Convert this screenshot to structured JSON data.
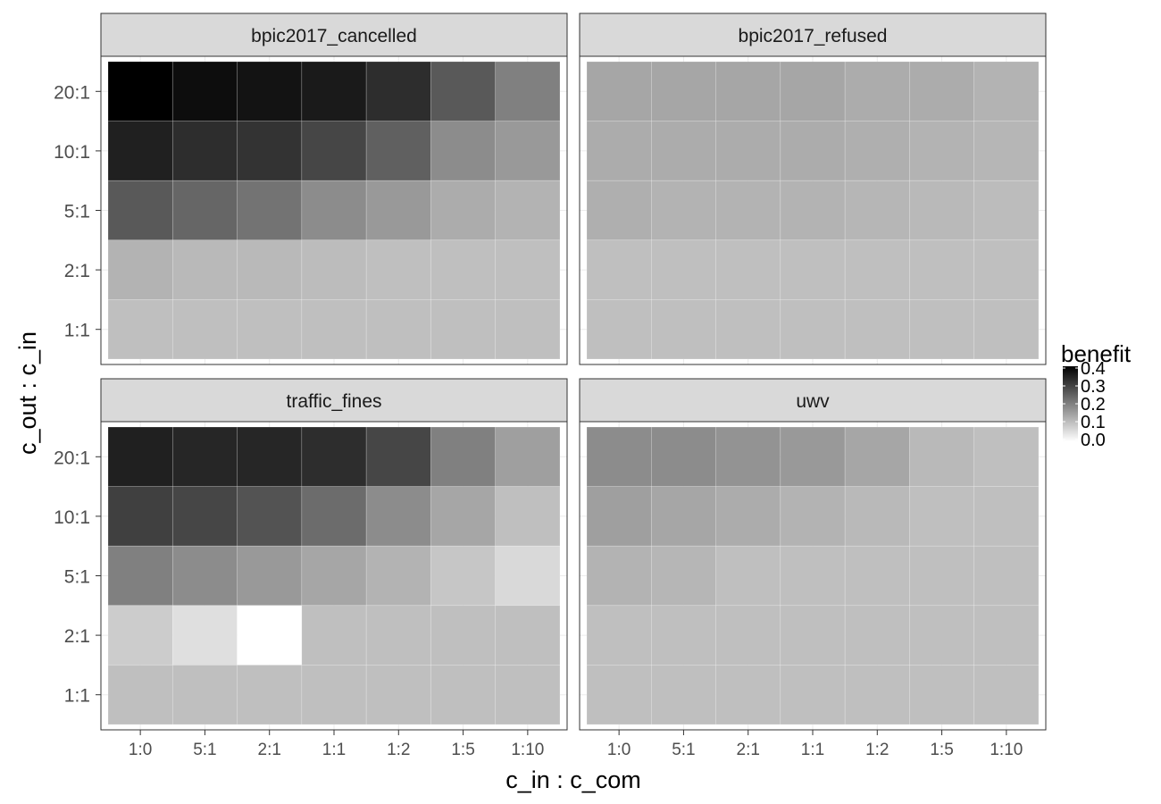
{
  "chart_data": {
    "type": "heatmap",
    "xlabel": "c_in : c_com",
    "ylabel": "c_out : c_in",
    "x_categories": [
      "1:0",
      "5:1",
      "2:1",
      "1:1",
      "1:2",
      "1:5",
      "1:10"
    ],
    "y_categories": [
      "20:1",
      "10:1",
      "5:1",
      "2:1",
      "1:1"
    ],
    "legend": {
      "title": "benefit",
      "ticks": [
        "0.4",
        "0.3",
        "0.2",
        "0.1",
        "0.0"
      ],
      "range": [
        0,
        0.4
      ],
      "placement": "right",
      "low_color": "#ffffff",
      "high_color": "#000000"
    },
    "baseline_value": 0.1,
    "grid": true,
    "panels": [
      {
        "name": "bpic2017_cancelled",
        "values": [
          [
            0.4,
            0.38,
            0.37,
            0.36,
            0.33,
            0.26,
            0.2
          ],
          [
            0.35,
            0.33,
            0.32,
            0.29,
            0.25,
            0.18,
            0.16
          ],
          [
            0.26,
            0.24,
            0.22,
            0.18,
            0.16,
            0.13,
            0.12
          ],
          [
            0.12,
            0.11,
            0.11,
            0.105,
            0.1,
            0.1,
            0.1
          ],
          [
            0.1,
            0.1,
            0.1,
            0.1,
            0.1,
            0.1,
            0.1
          ]
        ]
      },
      {
        "name": "bpic2017_refused",
        "values": [
          [
            0.14,
            0.14,
            0.14,
            0.14,
            0.13,
            0.13,
            0.12
          ],
          [
            0.13,
            0.13,
            0.13,
            0.13,
            0.125,
            0.12,
            0.115
          ],
          [
            0.125,
            0.12,
            0.12,
            0.12,
            0.115,
            0.11,
            0.105
          ],
          [
            0.1,
            0.1,
            0.1,
            0.1,
            0.1,
            0.1,
            0.1
          ],
          [
            0.1,
            0.1,
            0.1,
            0.1,
            0.1,
            0.1,
            0.1
          ]
        ]
      },
      {
        "name": "traffic_fines",
        "values": [
          [
            0.35,
            0.34,
            0.34,
            0.33,
            0.29,
            0.2,
            0.15
          ],
          [
            0.3,
            0.29,
            0.27,
            0.23,
            0.18,
            0.14,
            0.1
          ],
          [
            0.2,
            0.18,
            0.16,
            0.14,
            0.12,
            0.09,
            0.06
          ],
          [
            0.08,
            0.05,
            0.0,
            0.1,
            0.1,
            0.1,
            0.1
          ],
          [
            0.1,
            0.1,
            0.1,
            0.1,
            0.1,
            0.1,
            0.1
          ]
        ]
      },
      {
        "name": "uwv",
        "values": [
          [
            0.18,
            0.18,
            0.17,
            0.16,
            0.14,
            0.11,
            0.1
          ],
          [
            0.15,
            0.14,
            0.13,
            0.12,
            0.11,
            0.1,
            0.1
          ],
          [
            0.12,
            0.115,
            0.1,
            0.1,
            0.1,
            0.1,
            0.1
          ],
          [
            0.1,
            0.1,
            0.1,
            0.1,
            0.1,
            0.1,
            0.1
          ],
          [
            0.1,
            0.1,
            0.1,
            0.1,
            0.1,
            0.1,
            0.1
          ]
        ]
      }
    ]
  }
}
